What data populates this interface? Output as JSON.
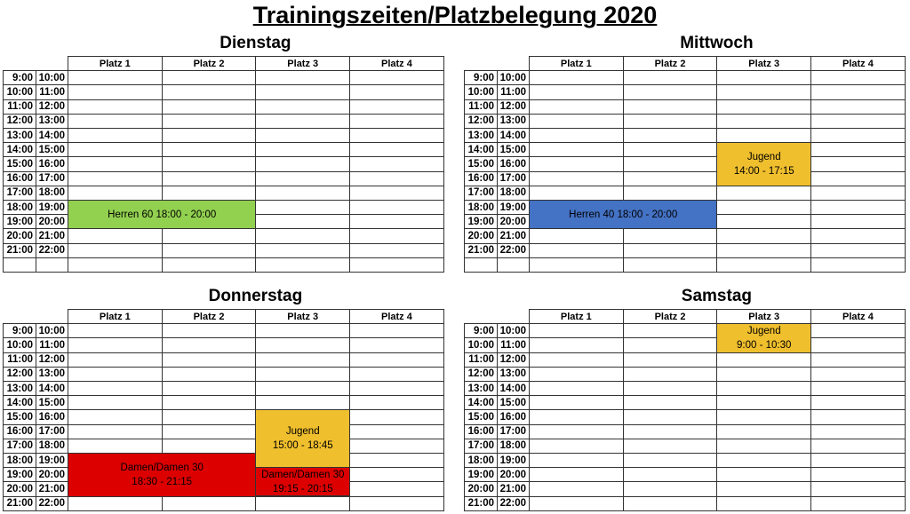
{
  "title": "Trainingszeiten/Platzbelegung 2020",
  "courts": [
    "Platz 1",
    "Platz 2",
    "Platz 3",
    "Platz 4"
  ],
  "colors": {
    "green": "#92d050",
    "blue": "#4472c4",
    "yellow": "#f0bf2e",
    "red": "#dc0000"
  },
  "days": [
    {
      "name": "Dienstag",
      "slots": [
        [
          "9:00",
          "10:00"
        ],
        [
          "10:00",
          "11:00"
        ],
        [
          "11:00",
          "12:00"
        ],
        [
          "12:00",
          "13:00"
        ],
        [
          "13:00",
          "14:00"
        ],
        [
          "14:00",
          "15:00"
        ],
        [
          "15:00",
          "16:00"
        ],
        [
          "16:00",
          "17:00"
        ],
        [
          "17:00",
          "18:00"
        ],
        [
          "18:00",
          "19:00"
        ],
        [
          "19:00",
          "20:00"
        ],
        [
          "20:00",
          "21:00"
        ],
        [
          "21:00",
          "22:00"
        ],
        [
          "",
          ""
        ]
      ],
      "events": [
        {
          "lines": [
            "Herren 60  18:00 - 20:00"
          ],
          "court_from": 1,
          "court_to": 2,
          "block_start": 18,
          "block_end": 20,
          "color": "#92d050"
        }
      ]
    },
    {
      "name": "Mittwoch",
      "slots": [
        [
          "9:00",
          "10:00"
        ],
        [
          "10:00",
          "11:00"
        ],
        [
          "11:00",
          "12:00"
        ],
        [
          "12:00",
          "13:00"
        ],
        [
          "13:00",
          "14:00"
        ],
        [
          "14:00",
          "15:00"
        ],
        [
          "15:00",
          "16:00"
        ],
        [
          "16:00",
          "17:00"
        ],
        [
          "17:00",
          "18:00"
        ],
        [
          "18:00",
          "19:00"
        ],
        [
          "19:00",
          "20:00"
        ],
        [
          "20:00",
          "21:00"
        ],
        [
          "21:00",
          "22:00"
        ],
        [
          "",
          ""
        ]
      ],
      "events": [
        {
          "lines": [
            "Jugend",
            "14:00 - 17:15"
          ],
          "court_from": 3,
          "court_to": 3,
          "block_start": 14,
          "block_end": 17,
          "color": "#f0bf2e"
        },
        {
          "lines": [
            "Herren 40 18:00 - 20:00"
          ],
          "court_from": 1,
          "court_to": 2,
          "block_start": 18,
          "block_end": 20,
          "color": "#4472c4"
        }
      ]
    },
    {
      "name": "Donnerstag",
      "slots": [
        [
          "9:00",
          "10:00"
        ],
        [
          "10:00",
          "11:00"
        ],
        [
          "11:00",
          "12:00"
        ],
        [
          "12:00",
          "13:00"
        ],
        [
          "13:00",
          "14:00"
        ],
        [
          "14:00",
          "15:00"
        ],
        [
          "15:00",
          "16:00"
        ],
        [
          "16:00",
          "17:00"
        ],
        [
          "17:00",
          "18:00"
        ],
        [
          "18:00",
          "19:00"
        ],
        [
          "19:00",
          "20:00"
        ],
        [
          "20:00",
          "21:00"
        ],
        [
          "21:00",
          "22:00"
        ]
      ],
      "events": [
        {
          "lines": [
            "Jugend",
            "15:00 - 18:45"
          ],
          "court_from": 3,
          "court_to": 3,
          "block_start": 15,
          "block_end": 19,
          "color": "#f0bf2e"
        },
        {
          "lines": [
            "Damen/Damen 30",
            "18:30 - 21:15"
          ],
          "court_from": 1,
          "court_to": 2,
          "block_start": 18,
          "block_end": 21,
          "color": "#dc0000"
        },
        {
          "lines": [
            "Damen/Damen 30",
            "19:15 - 20:15"
          ],
          "court_from": 3,
          "court_to": 3,
          "block_start": 19,
          "block_end": 21,
          "color": "#dc0000"
        }
      ]
    },
    {
      "name": "Samstag",
      "slots": [
        [
          "9:00",
          "10:00"
        ],
        [
          "10:00",
          "11:00"
        ],
        [
          "11:00",
          "12:00"
        ],
        [
          "12:00",
          "13:00"
        ],
        [
          "13:00",
          "14:00"
        ],
        [
          "14:00",
          "15:00"
        ],
        [
          "15:00",
          "16:00"
        ],
        [
          "16:00",
          "17:00"
        ],
        [
          "17:00",
          "18:00"
        ],
        [
          "18:00",
          "19:00"
        ],
        [
          "19:00",
          "20:00"
        ],
        [
          "20:00",
          "21:00"
        ],
        [
          "21:00",
          "22:00"
        ]
      ],
      "events": [
        {
          "lines": [
            "Jugend",
            "9:00 - 10:30"
          ],
          "court_from": 3,
          "court_to": 3,
          "block_start": 9,
          "block_end": 11,
          "color": "#f0bf2e"
        }
      ]
    }
  ]
}
